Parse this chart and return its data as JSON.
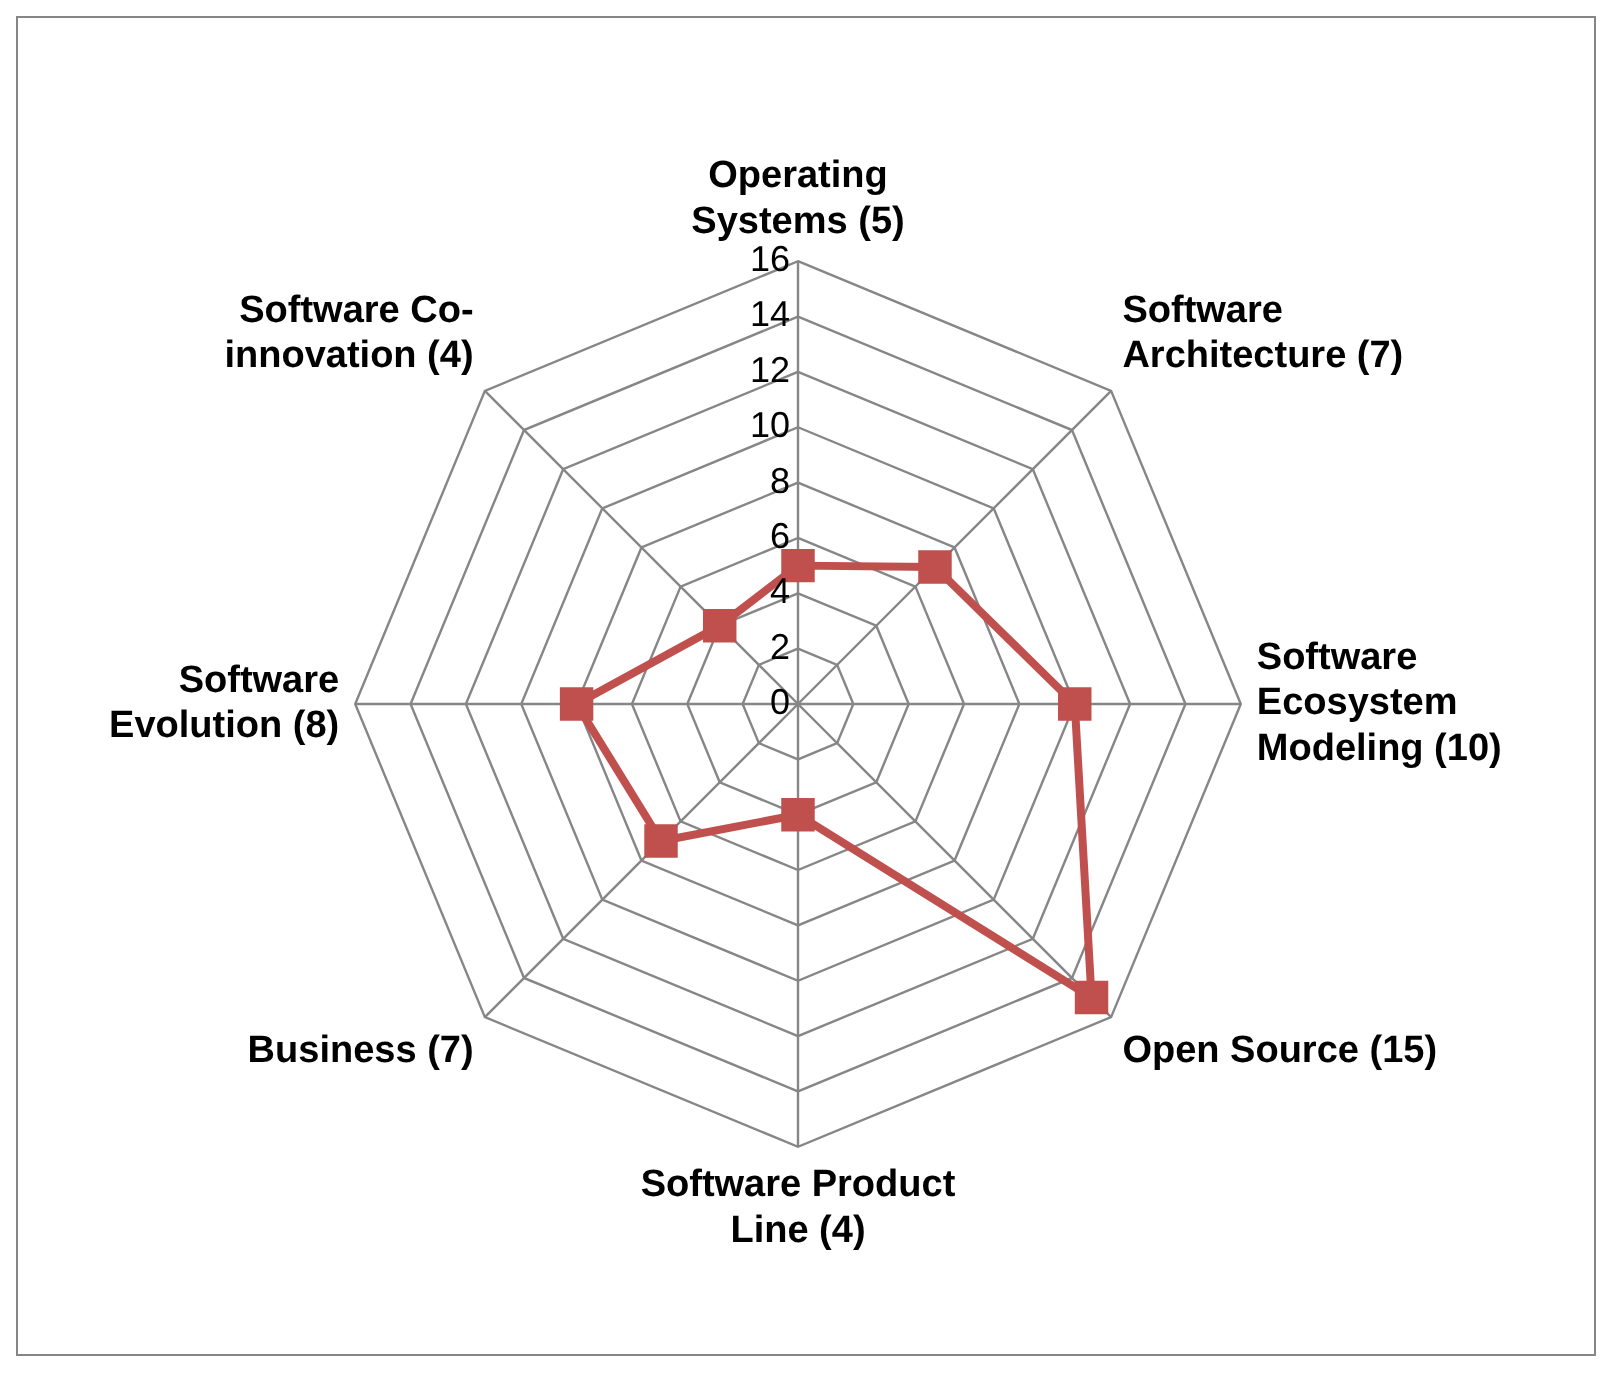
{
  "chart_data": {
    "type": "radar",
    "categories": [
      "Operating Systems (5)",
      "Software Architecture (7)",
      "Software Ecosystem Modeling (10)",
      "Open Source (15)",
      "Software Product Line (4)",
      "Business (7)",
      "Software Evolution (8)",
      "Software Co-innovation (4)"
    ],
    "series": [
      {
        "color": "#c0504d",
        "values": [
          5,
          7,
          10,
          15,
          4,
          7,
          8,
          4
        ]
      }
    ],
    "ylim": [
      0,
      16
    ],
    "yticks": [
      0,
      2,
      4,
      6,
      8,
      10,
      12,
      14,
      16
    ],
    "grid": true,
    "legend": false,
    "marker": "square",
    "line_style": "solid"
  }
}
